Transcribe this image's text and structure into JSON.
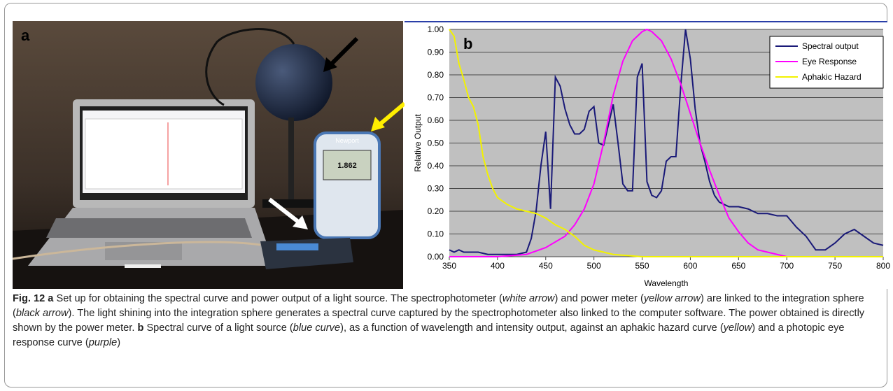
{
  "panels": {
    "a": "a",
    "b": "b"
  },
  "photo_text": [
    "Newport",
    "1.862"
  ],
  "chart_data": {
    "type": "line",
    "xlabel": "Wavelength",
    "ylabel": "Relative Output",
    "xlim": [
      350,
      800
    ],
    "ylim": [
      0,
      1
    ],
    "xticks": [
      350,
      400,
      450,
      500,
      550,
      600,
      650,
      700,
      750,
      800
    ],
    "yticks": [
      {
        "value": 0,
        "label": "0.00"
      },
      {
        "value": 0.1,
        "label": "0.10"
      },
      {
        "value": 0.2,
        "label": "0.20"
      },
      {
        "value": 0.3,
        "label": "0.30"
      },
      {
        "value": 0.4,
        "label": "0.40"
      },
      {
        "value": 0.5,
        "label": "0.50"
      },
      {
        "value": 0.6,
        "label": "0.60"
      },
      {
        "value": 0.7,
        "label": "0.70"
      },
      {
        "value": 0.8,
        "label": "0.80"
      },
      {
        "value": 0.9,
        "label": "0.90"
      },
      {
        "value": 1,
        "label": "1.00"
      }
    ],
    "grid": true,
    "legend": "upper right",
    "series": [
      {
        "name": "Spectral output",
        "color": "#1a1a78",
        "x": [
          350,
          355,
          360,
          365,
          370,
          380,
          390,
          400,
          410,
          420,
          430,
          435,
          440,
          445,
          450,
          455,
          460,
          465,
          470,
          475,
          480,
          485,
          490,
          495,
          500,
          505,
          510,
          515,
          520,
          525,
          530,
          535,
          540,
          545,
          550,
          555,
          560,
          565,
          570,
          575,
          580,
          585,
          590,
          595,
          600,
          605,
          610,
          615,
          620,
          625,
          630,
          635,
          640,
          650,
          660,
          670,
          680,
          690,
          700,
          710,
          720,
          730,
          740,
          750,
          760,
          770,
          780,
          790,
          800
        ],
        "values": [
          0.03,
          0.02,
          0.03,
          0.02,
          0.02,
          0.02,
          0.01,
          0.01,
          0.01,
          0.01,
          0.02,
          0.08,
          0.2,
          0.4,
          0.55,
          0.21,
          0.79,
          0.75,
          0.65,
          0.58,
          0.54,
          0.54,
          0.56,
          0.64,
          0.66,
          0.5,
          0.49,
          0.58,
          0.67,
          0.5,
          0.32,
          0.29,
          0.29,
          0.79,
          0.85,
          0.33,
          0.27,
          0.26,
          0.29,
          0.42,
          0.44,
          0.44,
          0.75,
          1.0,
          0.87,
          0.65,
          0.5,
          0.42,
          0.33,
          0.27,
          0.24,
          0.23,
          0.22,
          0.22,
          0.21,
          0.19,
          0.19,
          0.18,
          0.18,
          0.13,
          0.09,
          0.03,
          0.03,
          0.06,
          0.1,
          0.12,
          0.09,
          0.06,
          0.05
        ]
      },
      {
        "name": "Eye Response",
        "color": "#ff00ff",
        "x": [
          350,
          400,
          430,
          450,
          470,
          480,
          490,
          500,
          510,
          520,
          530,
          540,
          550,
          555,
          560,
          570,
          580,
          590,
          600,
          610,
          620,
          630,
          640,
          650,
          660,
          670,
          680,
          700,
          800
        ],
        "values": [
          0,
          0,
          0.01,
          0.04,
          0.09,
          0.14,
          0.21,
          0.32,
          0.5,
          0.71,
          0.86,
          0.95,
          0.99,
          1.0,
          0.99,
          0.95,
          0.87,
          0.76,
          0.63,
          0.5,
          0.38,
          0.27,
          0.17,
          0.11,
          0.06,
          0.03,
          0.02,
          0,
          0
        ]
      },
      {
        "name": "Aphakic Hazard",
        "color": "#f2f200",
        "x": [
          350,
          355,
          360,
          365,
          370,
          375,
          380,
          385,
          390,
          395,
          400,
          410,
          420,
          430,
          440,
          450,
          460,
          470,
          480,
          490,
          500,
          510,
          520,
          550,
          600,
          700,
          800
        ],
        "values": [
          1.0,
          0.97,
          0.85,
          0.78,
          0.7,
          0.66,
          0.58,
          0.44,
          0.36,
          0.3,
          0.26,
          0.23,
          0.21,
          0.2,
          0.19,
          0.17,
          0.14,
          0.12,
          0.09,
          0.05,
          0.03,
          0.02,
          0.01,
          0,
          0,
          0,
          0
        ]
      }
    ]
  },
  "caption": {
    "segments": [
      "Fig. 12",
      "a",
      "Set up for obtaining the spectral curve and power output of a light source. The spectrophotometer (",
      "white arrow",
      ") and power meter (",
      "yellow arrow",
      ") are linked to the integration sphere (",
      "black arrow",
      "). The light shining into the integration sphere generates a spectral curve captured by the spectrophotometer also linked to the computer software. The power obtained is directly shown by the power meter.",
      "b",
      "Spectral curve of a light source (",
      "blue curve",
      "), as a function of wavelength and intensity output, against an aphakic hazard curve (",
      "yellow",
      ") and a photopic eye response curve (",
      "purple",
      ")"
    ]
  }
}
